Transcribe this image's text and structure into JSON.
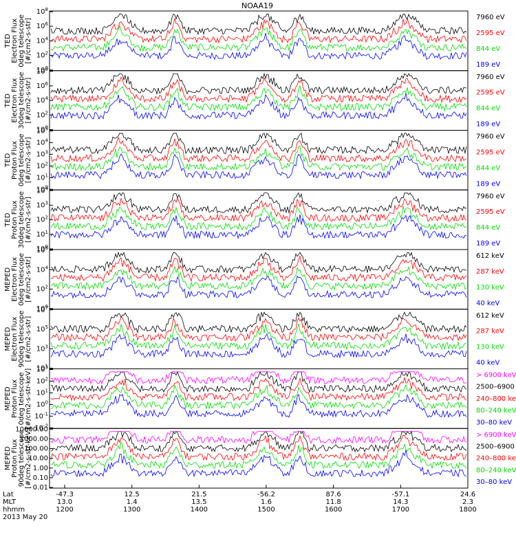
{
  "chart_data": {
    "type": "line",
    "title": "NOAA19",
    "date_label": "2013 May 20",
    "xaxis": {
      "row_labels": [
        "Lat",
        "MLT",
        "hhmm"
      ],
      "columns": [
        {
          "lat": "-47.3",
          "mlt": "13.0",
          "hhmm": "1200"
        },
        {
          "lat": "12.5",
          "mlt": "1.4",
          "hhmm": "1300"
        },
        {
          "lat": "21.5",
          "mlt": "13.5",
          "hhmm": "1400"
        },
        {
          "lat": "-56.2",
          "mlt": "1.6",
          "hhmm": "1500"
        },
        {
          "lat": "87.6",
          "mlt": "11.8",
          "hhmm": "1600"
        },
        {
          "lat": "-57.1",
          "mlt": "14.3",
          "hhmm": "1700"
        },
        {
          "lat": "24.6",
          "mlt": "2.3",
          "hhmm": "1800"
        }
      ]
    },
    "panels": [
      {
        "ylabel": [
          "TED",
          "Electron Flux",
          "0deg telescope",
          "[#/cm2-s-str]"
        ],
        "yticks": [
          "10^0",
          "10^2",
          "10^4",
          "10^6",
          "10^8"
        ],
        "legend": [
          {
            "label": "7960 eV",
            "color": "#000000"
          },
          {
            "label": "2595 eV",
            "color": "#ff0000"
          },
          {
            "label": "844 eV",
            "color": "#00dd00"
          },
          {
            "label": "189 eV",
            "color": "#0000ff"
          }
        ]
      },
      {
        "ylabel": [
          "TED",
          "Electron Flux",
          "30deg telescope",
          "[#/cm2-s-str]"
        ],
        "yticks": [
          "10^0",
          "10^2",
          "10^4",
          "10^6",
          "10^8"
        ],
        "legend": [
          {
            "label": "7960 eV",
            "color": "#000000"
          },
          {
            "label": "2595 eV",
            "color": "#ff0000"
          },
          {
            "label": "844 eV",
            "color": "#00dd00"
          },
          {
            "label": "189 eV",
            "color": "#0000ff"
          }
        ]
      },
      {
        "ylabel": [
          "TED",
          "Proton Flux",
          "0deg telescope",
          "[#/cm2-s-str]"
        ],
        "yticks": [
          "10^0",
          "10^1",
          "10^2",
          "10^3",
          "10^4",
          "10^5"
        ],
        "legend": [
          {
            "label": "7960 eV",
            "color": "#000000"
          },
          {
            "label": "2595 eV",
            "color": "#ff0000"
          },
          {
            "label": "844 eV",
            "color": "#00dd00"
          },
          {
            "label": "189 eV",
            "color": "#0000ff"
          }
        ]
      },
      {
        "ylabel": [
          "TED",
          "Proton Flux",
          "30deg telescope",
          "[#/cm2-s-str]"
        ],
        "yticks": [
          "10^0",
          "10^1",
          "10^2",
          "10^3",
          "10^4"
        ],
        "legend": [
          {
            "label": "7960 eV",
            "color": "#000000"
          },
          {
            "label": "2595 eV",
            "color": "#ff0000"
          },
          {
            "label": "844 eV",
            "color": "#00dd00"
          },
          {
            "label": "189 eV",
            "color": "#0000ff"
          }
        ]
      },
      {
        "ylabel": [
          "MEPED",
          "Electron Flux",
          "0deg telescope",
          "[#/cm2-s-str]"
        ],
        "yticks": [
          "10^0",
          "10^2",
          "10^4",
          "10^6"
        ],
        "legend": [
          {
            "label": "612 keV",
            "color": "#000000"
          },
          {
            "label": "287 keV",
            "color": "#ff0000"
          },
          {
            "label": "130 keV",
            "color": "#00dd00"
          },
          {
            "label": "40 keV",
            "color": "#0000ff"
          }
        ]
      },
      {
        "ylabel": [
          "MEPED",
          "Electron Flux",
          "90deg telescope",
          "[#/cm2-s-str]"
        ],
        "yticks": [
          "10^1",
          "10^3",
          "10^5",
          "10^7"
        ],
        "legend": [
          {
            "label": "612 keV",
            "color": "#000000"
          },
          {
            "label": "287 keV",
            "color": "#ff0000"
          },
          {
            "label": "130 keV",
            "color": "#00dd00"
          },
          {
            "label": "40 keV",
            "color": "#0000ff"
          }
        ]
      },
      {
        "ylabel": [
          "MEPED",
          "Proton Flux",
          "0deg telescope",
          "[#/cm2-s-str-keV]"
        ],
        "yticks": [
          "10^-2",
          "10^-1",
          "10^0",
          "10^1",
          "10^2",
          "10^3"
        ],
        "legend": [
          {
            "label": "> 6900 keV",
            "color": "#ff00ff"
          },
          {
            "label": "2500–6900",
            "color": "#000000"
          },
          {
            "label": "240–800 keV",
            "color": "#ff0000"
          },
          {
            "label": "80–240 keV",
            "color": "#00dd00"
          },
          {
            "label": "30–80 keV",
            "color": "#0000ff"
          }
        ]
      },
      {
        "ylabel": [
          "MEPED",
          "Proton Flux",
          "90deg telescope",
          "[#/cm2-s-str-keV]"
        ],
        "yticks": [
          "0.01",
          "0.10",
          "1.00",
          "10.00",
          "100.00",
          "1000.00",
          "10000.00"
        ],
        "legend": [
          {
            "label": "> 6900 keV",
            "color": "#ff00ff"
          },
          {
            "label": "2500–6900",
            "color": "#000000"
          },
          {
            "label": "240–800 keV",
            "color": "#ff0000"
          },
          {
            "label": "80–240 keV",
            "color": "#00dd00"
          },
          {
            "label": "30–80 keV",
            "color": "#0000ff"
          }
        ]
      }
    ]
  }
}
